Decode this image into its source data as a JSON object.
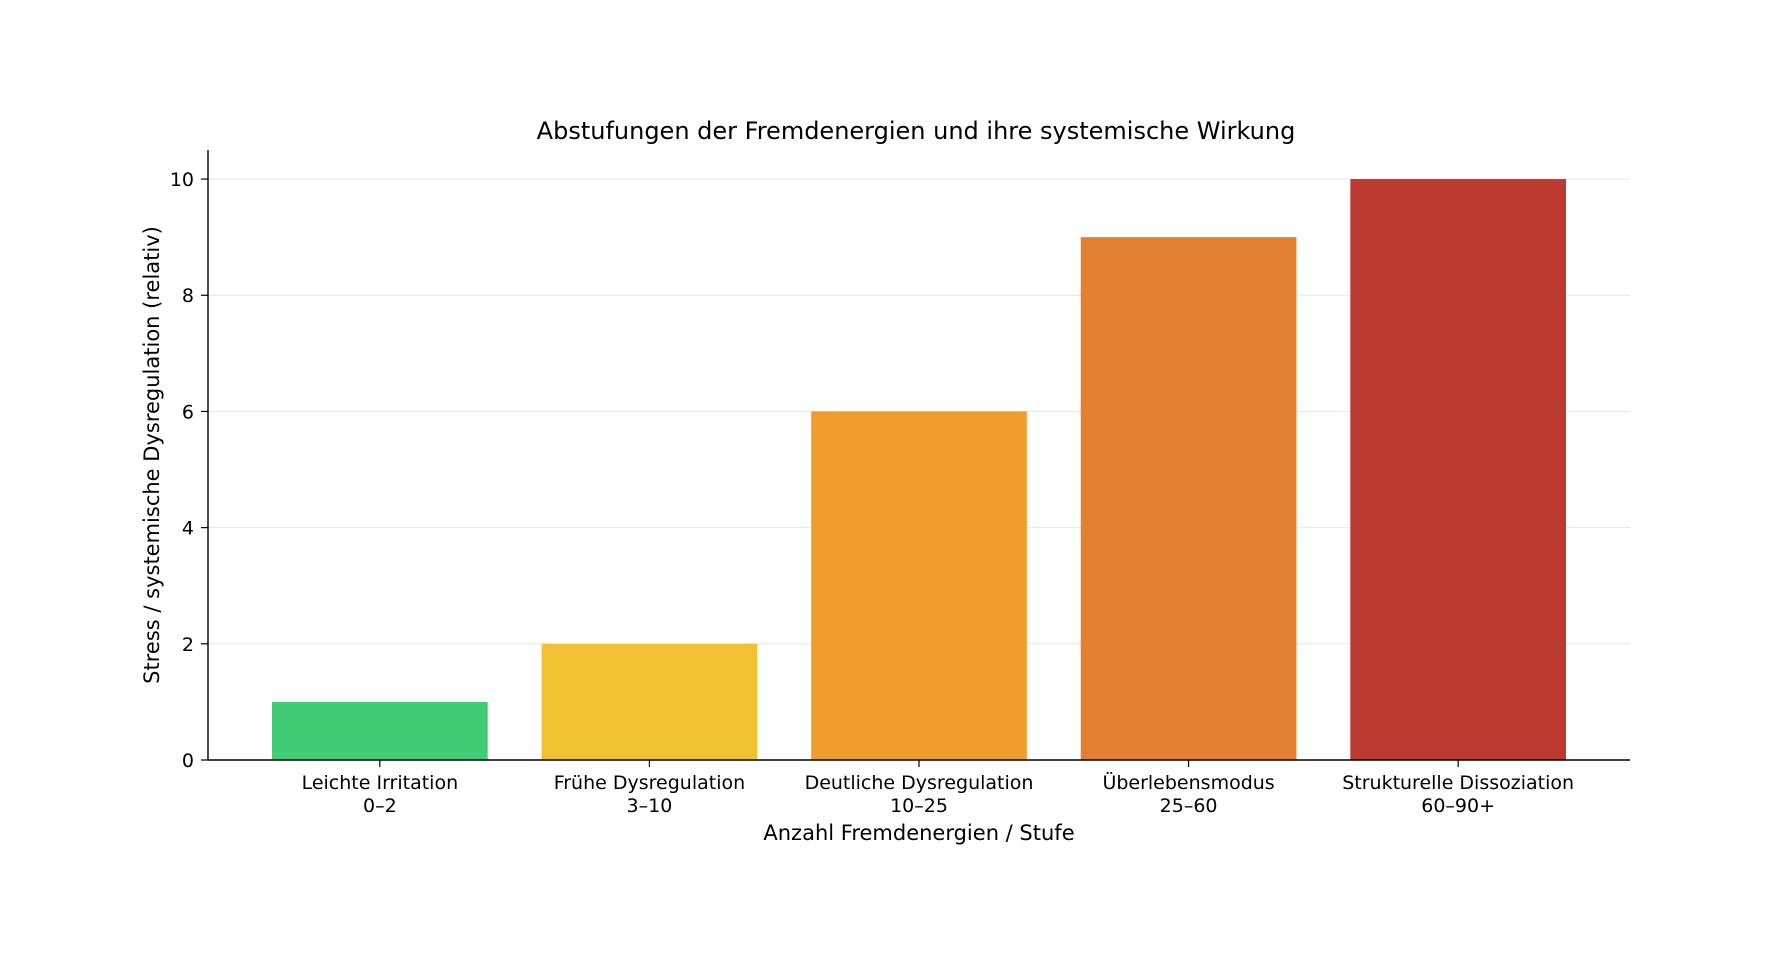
{
  "chart_data": {
    "type": "bar",
    "title": "Abstufungen der Fremdenergien und ihre systemische Wirkung",
    "xlabel": "Anzahl Fremdenergien / Stufe",
    "ylabel": "Stress / systemische Dysregulation (relativ)",
    "categories": [
      {
        "name": "Leichte Irritation",
        "range": "0–2"
      },
      {
        "name": "Frühe Dysregulation",
        "range": "3–10"
      },
      {
        "name": "Deutliche Dysregulation",
        "range": "10–25"
      },
      {
        "name": "Überlebensmodus",
        "range": "25–60"
      },
      {
        "name": "Strukturelle Dissoziation",
        "range": "60–90+"
      }
    ],
    "values": [
      1,
      2,
      6,
      9,
      10
    ],
    "colors": [
      "#43cc76",
      "#f0c231",
      "#f09c2e",
      "#e27f31",
      "#bb3b31"
    ],
    "ylim": [
      0,
      10.5
    ],
    "yticks": [
      0,
      2,
      4,
      6,
      8,
      10
    ],
    "grid": "horizontal",
    "legend": "none"
  }
}
